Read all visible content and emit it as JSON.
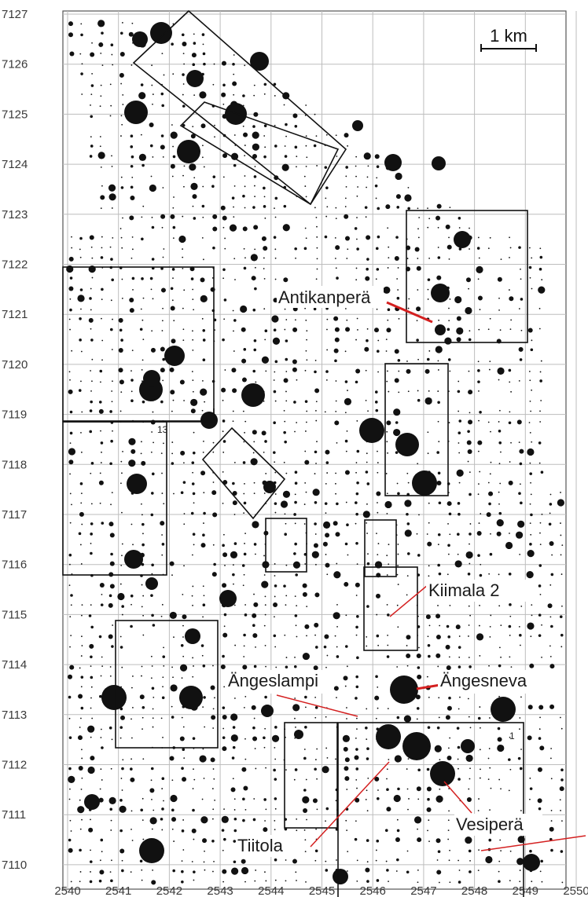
{
  "map": {
    "scale_bar_label": "1 km",
    "y_axis_labels": [
      "7127",
      "7126",
      "7125",
      "7124",
      "7123",
      "7122",
      "7121",
      "7120",
      "7119",
      "7118",
      "7117",
      "7116",
      "7115",
      "7114",
      "7113",
      "7112",
      "7111",
      "7110"
    ],
    "x_axis_labels": [
      "2540",
      "2541",
      "2542",
      "2543",
      "2544",
      "2545",
      "2546",
      "2547",
      "2548",
      "2549",
      "2550"
    ],
    "grid_annotations": [
      "13",
      "1"
    ],
    "places": [
      {
        "key": "antikanpera",
        "label": "Antikanperä"
      },
      {
        "key": "kiimala2",
        "label": "Kiimala 2"
      },
      {
        "key": "angeslampi",
        "label": "Ängeslampi"
      },
      {
        "key": "angesneva",
        "label": "Ängesneva"
      },
      {
        "key": "tiitola",
        "label": "Tiitola"
      },
      {
        "key": "vesipera",
        "label": "Vesiperä"
      }
    ],
    "colors": {
      "ink": "#111111",
      "grid": "#bdbdbd",
      "pointer": "#d42020"
    }
  }
}
